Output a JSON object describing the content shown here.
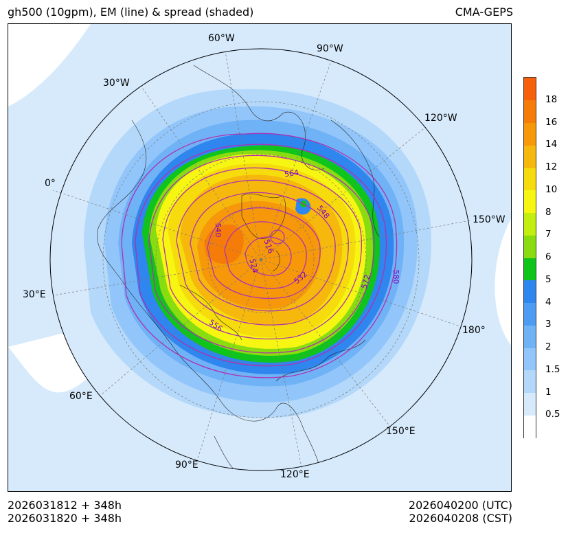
{
  "title": {
    "left": "gh500 (10gpm), EM (line) & spread (shaded)",
    "right": "CMA-GEPS"
  },
  "longitude_labels": [
    "60°W",
    "90°W",
    "30°W",
    "120°W",
    "0°",
    "150°W",
    "30°E",
    "180°",
    "60°E",
    "150°E",
    "90°E",
    "120°E"
  ],
  "contour_labels": [
    "564",
    "548",
    "540",
    "516",
    "524",
    "532",
    "572",
    "580",
    "556"
  ],
  "colorbar": {
    "colors": [
      "#ffffff",
      "#d6eafc",
      "#b4d8fa",
      "#92c6fa",
      "#70b2f6",
      "#4e9cf2",
      "#2e86ee",
      "#0fc41a",
      "#88dc10",
      "#c2ee10",
      "#f6f612",
      "#f6dc0c",
      "#f6b80c",
      "#f6980a",
      "#f67c0a",
      "#f6600a"
    ],
    "tick_labels": [
      "0.5",
      "1",
      "1.5",
      "2",
      "3",
      "4",
      "5",
      "6",
      "7",
      "8",
      "10",
      "12",
      "14",
      "16",
      "18"
    ]
  },
  "footer": {
    "init_utc": "2026031812 + 348h",
    "init_cst": "2026031820 + 348h",
    "valid_utc": "2026040200 (UTC)",
    "valid_cst": "2026040208 (CST)"
  },
  "colors": {
    "em_line": "#b030b0",
    "label": "#8000c0",
    "coast": "#222222",
    "grid": "#777777"
  }
}
